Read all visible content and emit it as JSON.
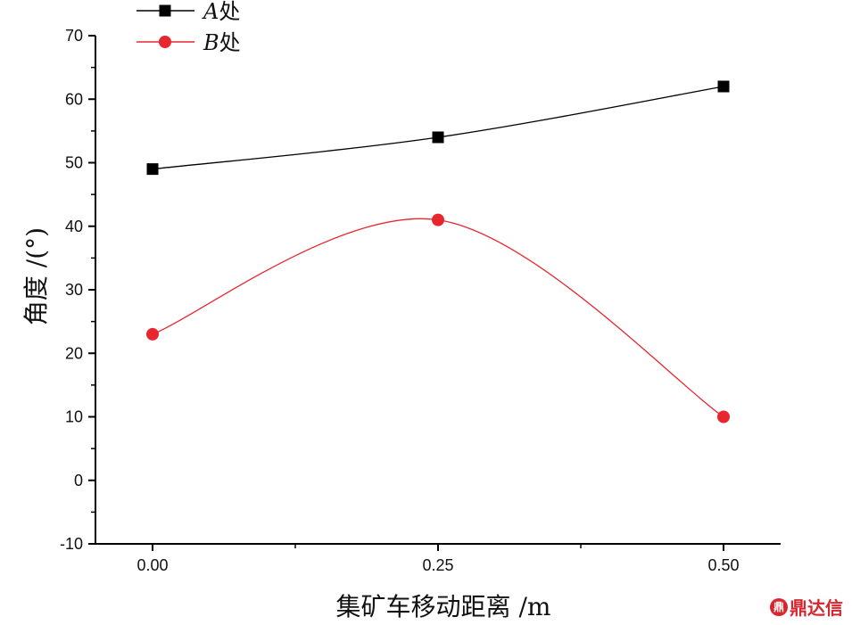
{
  "chart_data": {
    "type": "line",
    "title": "",
    "xlabel": "集矿车移动距离 /m",
    "ylabel": "角度 /(°)",
    "x": [
      0.0,
      0.25,
      0.5
    ],
    "x_tick_labels": [
      "0.00",
      "0.25",
      "0.50"
    ],
    "xlim": [
      -0.05,
      0.55
    ],
    "ylim": [
      -10,
      70
    ],
    "y_ticks": [
      -10,
      0,
      10,
      20,
      30,
      40,
      50,
      60,
      70
    ],
    "y_tick_labels": [
      "-10",
      "0",
      "10",
      "20",
      "30",
      "40",
      "50",
      "60",
      "70"
    ],
    "grid": false,
    "legend_position": "top-left",
    "series": [
      {
        "name": "A处",
        "letter": "A",
        "suffix": "处",
        "values": [
          49,
          54,
          62
        ],
        "color": "#000000",
        "marker": "square"
      },
      {
        "name": "B处",
        "letter": "B",
        "suffix": "处",
        "values": [
          23,
          41,
          10
        ],
        "color": "#e8262e",
        "marker": "circle"
      }
    ]
  },
  "watermark": {
    "text": "鼎达信",
    "logo_glyph": "鼎"
  }
}
